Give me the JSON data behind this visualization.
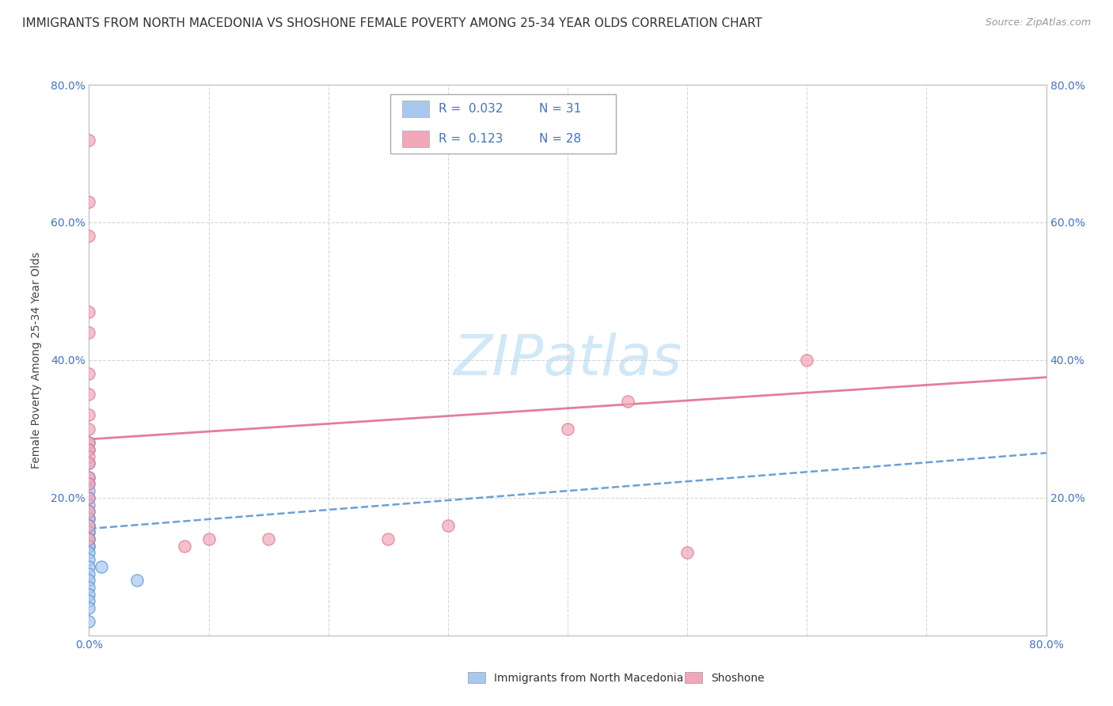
{
  "title": "IMMIGRANTS FROM NORTH MACEDONIA VS SHOSHONE FEMALE POVERTY AMONG 25-34 YEAR OLDS CORRELATION CHART",
  "source": "Source: ZipAtlas.com",
  "ylabel": "Female Poverty Among 25-34 Year Olds",
  "xlim": [
    0.0,
    0.8
  ],
  "ylim": [
    0.0,
    0.8
  ],
  "x_ticks": [
    0.0,
    0.1,
    0.2,
    0.3,
    0.4,
    0.5,
    0.6,
    0.7,
    0.8
  ],
  "y_ticks": [
    0.0,
    0.2,
    0.4,
    0.6,
    0.8
  ],
  "color_blue": "#a8c8f0",
  "color_pink": "#f0a8b8",
  "color_blue_dark": "#5090d0",
  "color_pink_dark": "#e07090",
  "color_blue_text": "#4472c4",
  "watermark_color": "#d0e8f8",
  "scatter_blue_x": [
    0.0,
    0.0,
    0.0,
    0.0,
    0.0,
    0.0,
    0.0,
    0.0,
    0.0,
    0.0,
    0.0,
    0.0,
    0.0,
    0.0,
    0.0,
    0.0,
    0.0,
    0.0,
    0.0,
    0.0,
    0.0,
    0.0,
    0.0,
    0.0,
    0.0,
    0.0,
    0.0,
    0.0,
    0.0,
    0.01,
    0.04
  ],
  "scatter_blue_y": [
    0.28,
    0.27,
    0.25,
    0.23,
    0.22,
    0.21,
    0.2,
    0.19,
    0.18,
    0.17,
    0.17,
    0.16,
    0.16,
    0.15,
    0.15,
    0.14,
    0.14,
    0.13,
    0.13,
    0.12,
    0.11,
    0.1,
    0.09,
    0.08,
    0.07,
    0.06,
    0.05,
    0.04,
    0.02,
    0.1,
    0.08
  ],
  "scatter_pink_x": [
    0.0,
    0.0,
    0.0,
    0.0,
    0.0,
    0.0,
    0.0,
    0.0,
    0.0,
    0.0,
    0.0,
    0.0,
    0.0,
    0.0,
    0.0,
    0.0,
    0.0,
    0.0,
    0.0,
    0.5,
    0.6,
    0.45,
    0.4,
    0.3,
    0.25,
    0.15,
    0.1,
    0.08
  ],
  "scatter_pink_y": [
    0.72,
    0.63,
    0.58,
    0.47,
    0.44,
    0.38,
    0.35,
    0.32,
    0.3,
    0.28,
    0.27,
    0.26,
    0.25,
    0.23,
    0.22,
    0.2,
    0.18,
    0.16,
    0.14,
    0.12,
    0.4,
    0.34,
    0.3,
    0.16,
    0.14,
    0.14,
    0.14,
    0.13
  ],
  "trend_blue_x0": 0.0,
  "trend_blue_x1": 0.8,
  "trend_blue_y0": 0.155,
  "trend_blue_y1": 0.265,
  "trend_pink_x0": 0.0,
  "trend_pink_x1": 0.8,
  "trend_pink_y0": 0.285,
  "trend_pink_y1": 0.375,
  "background_color": "#ffffff",
  "grid_color": "#cccccc",
  "title_fontsize": 11,
  "axis_label_fontsize": 10,
  "tick_fontsize": 10,
  "legend_label_blue": "Immigrants from North Macedonia",
  "legend_label_pink": "Shoshone"
}
